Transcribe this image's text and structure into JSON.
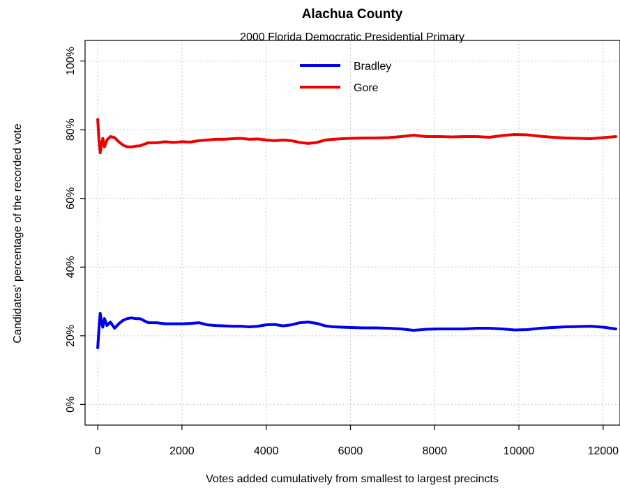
{
  "chart_data": {
    "type": "line",
    "title": "Alachua County",
    "subtitle": "2000 Florida Democratic Presidential Primary",
    "xlabel": "Votes added cumulatively from smallest to largest precincts",
    "ylabel": "Candidates' percentage of the recorded vote",
    "xlim": [
      -300,
      12400
    ],
    "ylim": [
      -6,
      106
    ],
    "x_ticks": [
      0,
      2000,
      4000,
      6000,
      8000,
      10000,
      12000
    ],
    "x_tick_labels": [
      "0",
      "2000",
      "4000",
      "6000",
      "8000",
      "10000",
      "12000"
    ],
    "y_ticks": [
      0,
      20,
      40,
      60,
      80,
      100
    ],
    "y_tick_labels": [
      "0%",
      "20%",
      "40%",
      "60%",
      "80%",
      "100%"
    ],
    "grid": true,
    "legend_position": "top-center",
    "series": [
      {
        "name": "Bradley",
        "color": "#0000ee",
        "x": [
          0,
          30,
          60,
          90,
          120,
          160,
          220,
          300,
          400,
          500,
          600,
          700,
          800,
          900,
          1000,
          1200,
          1400,
          1600,
          1800,
          2000,
          2200,
          2400,
          2600,
          2800,
          3000,
          3200,
          3400,
          3600,
          3800,
          4000,
          4200,
          4400,
          4600,
          4800,
          5000,
          5200,
          5400,
          5600,
          5800,
          6000,
          6300,
          6600,
          6900,
          7200,
          7500,
          7800,
          8100,
          8400,
          8700,
          9000,
          9300,
          9600,
          9900,
          10200,
          10500,
          10800,
          11100,
          11400,
          11700,
          12000,
          12300
        ],
        "y": [
          16.5,
          22,
          26.5,
          24,
          22.5,
          25,
          23,
          24,
          22.2,
          23.5,
          24.5,
          25,
          25.2,
          25,
          25,
          23.8,
          23.8,
          23.5,
          23.5,
          23.5,
          23.6,
          23.8,
          23.2,
          23,
          22.9,
          22.8,
          22.8,
          22.6,
          22.8,
          23.2,
          23.3,
          22.9,
          23.2,
          23.8,
          24,
          23.6,
          22.9,
          22.6,
          22.5,
          22.4,
          22.3,
          22.3,
          22.2,
          22,
          21.6,
          21.9,
          22,
          22,
          22,
          22.2,
          22.2,
          22,
          21.7,
          21.8,
          22.2,
          22.4,
          22.6,
          22.7,
          22.8,
          22.5,
          22
        ]
      },
      {
        "name": "Gore",
        "color": "#ee0000",
        "x": [
          0,
          30,
          60,
          90,
          120,
          160,
          220,
          300,
          400,
          500,
          600,
          700,
          800,
          900,
          1000,
          1200,
          1400,
          1600,
          1800,
          2000,
          2200,
          2400,
          2600,
          2800,
          3000,
          3200,
          3400,
          3600,
          3800,
          4000,
          4200,
          4400,
          4600,
          4800,
          5000,
          5200,
          5400,
          5600,
          5800,
          6000,
          6300,
          6600,
          6900,
          7200,
          7500,
          7800,
          8100,
          8400,
          8700,
          9000,
          9300,
          9600,
          9900,
          10200,
          10500,
          10800,
          11100,
          11400,
          11700,
          12000,
          12300
        ],
        "y": [
          83,
          77,
          73.3,
          76,
          77.5,
          75,
          77,
          78,
          77.7,
          76.5,
          75.5,
          75,
          75,
          75.2,
          75.3,
          76.2,
          76.2,
          76.5,
          76.3,
          76.5,
          76.4,
          76.8,
          77,
          77.2,
          77.2,
          77.4,
          77.5,
          77.2,
          77.3,
          77,
          76.8,
          77,
          76.8,
          76.3,
          76,
          76.3,
          77,
          77.2,
          77.4,
          77.5,
          77.6,
          77.6,
          77.7,
          78,
          78.4,
          78,
          78,
          77.9,
          78,
          78,
          77.8,
          78.3,
          78.6,
          78.5,
          78.1,
          77.8,
          77.6,
          77.5,
          77.4,
          77.7,
          78
        ]
      }
    ]
  }
}
